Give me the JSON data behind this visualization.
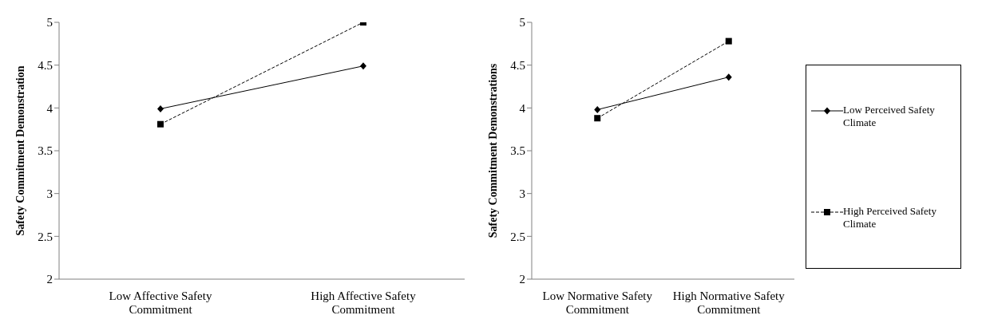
{
  "chart_data": [
    {
      "type": "line",
      "ylabel": "Safety Commitment  Demonstration",
      "categories": [
        "Low Affective Safety Commitment",
        "High Affective Safety Commitment"
      ],
      "ylim": [
        2,
        5
      ],
      "yticks": [
        2,
        2.5,
        3,
        3.5,
        4,
        4.5,
        5
      ],
      "grid": false,
      "legend": false,
      "series": [
        {
          "color": "#000000",
          "values": [
            3.99,
            4.49
          ],
          "marker": "diamond",
          "line_style": "solid"
        },
        {
          "color": "#000000",
          "values": [
            3.81,
            5.0
          ],
          "marker": "square",
          "line_style": "dashed"
        }
      ]
    },
    {
      "type": "line",
      "ylabel": "Safety Commitment Demonstrations",
      "categories": [
        "Low Normative Safety Commitment",
        "High Normative Safety Commitment"
      ],
      "ylim": [
        2,
        5
      ],
      "yticks": [
        2,
        2.5,
        3,
        3.5,
        4,
        4.5,
        5
      ],
      "grid": false,
      "legend": "right",
      "series": [
        {
          "name": "Low Perceived Safety Climate",
          "color": "#000000",
          "values": [
            3.98,
            4.36
          ],
          "marker": "diamond",
          "line_style": "solid"
        },
        {
          "name": "High Perceived Safety Climate",
          "color": "#000000",
          "values": [
            3.88,
            4.78
          ],
          "marker": "square",
          "line_style": "dashed"
        }
      ]
    }
  ]
}
